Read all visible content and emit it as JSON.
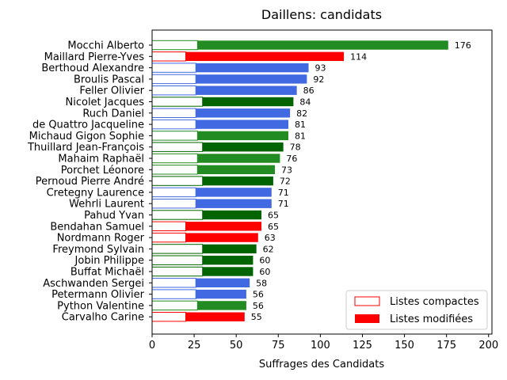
{
  "chart_data": {
    "type": "bar",
    "orientation": "horizontal",
    "stacked": true,
    "title": "Daillens: candidats",
    "xlabel": "Suffrages des Candidats",
    "ylabel": "",
    "xlim": [
      0,
      202
    ],
    "xticks": [
      0,
      25,
      50,
      75,
      100,
      125,
      150,
      175,
      200
    ],
    "grid": false,
    "legend_position": "bottom-right",
    "legend": [
      {
        "label": "Listes compactes",
        "style": "outline",
        "color": "#ff0000"
      },
      {
        "label": "Listes modifiées",
        "style": "filled",
        "color": "#ff0000"
      }
    ],
    "categories": [
      "Mocchi Alberto",
      "Maillard Pierre-Yves",
      "Berthoud Alexandre",
      "Broulis Pascal",
      "Feller Olivier",
      "Nicolet Jacques",
      "Ruch Daniel",
      "de Quattro Jacqueline",
      "Michaud Gigon Sophie",
      "Thuillard Jean-François",
      "Mahaim Raphaël",
      "Porchet Léonore",
      "Pernoud Pierre André",
      "Cretegny Laurence",
      "Wehrli Laurent",
      "Pahud Yvan",
      "Bendahan Samuel",
      "Nordmann Roger",
      "Freymond Sylvain",
      "Jobin Philippe",
      "Buffat Michaël",
      "Aschwanden Sergei",
      "Petermann Olivier",
      "Python Valentine",
      "Carvalho Carine"
    ],
    "colors": [
      "#228b22",
      "#ff0000",
      "#4169e1",
      "#4169e1",
      "#4169e1",
      "#006400",
      "#4169e1",
      "#4169e1",
      "#228b22",
      "#006400",
      "#228b22",
      "#228b22",
      "#006400",
      "#4169e1",
      "#4169e1",
      "#006400",
      "#ff0000",
      "#ff0000",
      "#006400",
      "#006400",
      "#006400",
      "#4169e1",
      "#4169e1",
      "#228b22",
      "#ff0000"
    ],
    "series": [
      {
        "name": "Listes compactes",
        "values": [
          27,
          20,
          26,
          26,
          26,
          30,
          26,
          26,
          27,
          30,
          27,
          27,
          30,
          26,
          26,
          30,
          20,
          20,
          30,
          30,
          30,
          26,
          26,
          27,
          20
        ]
      },
      {
        "name": "Listes modifiées",
        "values": [
          149,
          94,
          67,
          66,
          60,
          54,
          56,
          55,
          54,
          48,
          49,
          46,
          42,
          45,
          45,
          35,
          45,
          43,
          32,
          30,
          30,
          32,
          30,
          29,
          35
        ]
      }
    ],
    "totals": [
      176,
      114,
      93,
      92,
      86,
      84,
      82,
      81,
      81,
      78,
      76,
      73,
      72,
      71,
      71,
      65,
      65,
      63,
      62,
      60,
      60,
      58,
      56,
      56,
      55
    ]
  }
}
